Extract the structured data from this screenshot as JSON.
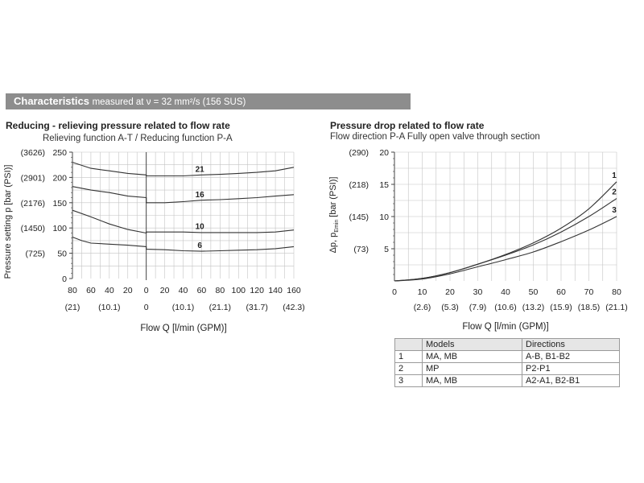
{
  "header": {
    "title": "Characteristics",
    "subtitle": "measured at ν = 32 mm²/s (156 SUS)",
    "color": "#8d8d8d"
  },
  "chart_data": [
    {
      "type": "line",
      "title": "Reducing - relieving pressure related to flow rate",
      "subtitle": "Relieving function A-T   /   Reducing function P-A",
      "xlabel": "Flow Q [l/min (GPM)]",
      "ylabel": "Pressure setting p [bar (PSI)]",
      "xlim": [
        -80,
        160
      ],
      "ylim": [
        0,
        250
      ],
      "x_ticks_left": [
        "80",
        "60",
        "40",
        "20",
        "0"
      ],
      "x_ticks_right": [
        "20",
        "40",
        "60",
        "80",
        "100",
        "120",
        "140",
        "160"
      ],
      "x_ticks_gpm": [
        "(21)",
        "(10.1)",
        "0",
        "(10.1)",
        "(21.1)",
        "(31.7)",
        "(42.3)"
      ],
      "y_ticks": [
        "0",
        "50",
        "100",
        "150",
        "200",
        "250"
      ],
      "y_ticks_psi": [
        "(725)",
        "(1450)",
        "(2176)",
        "(2901)",
        "(3626)"
      ],
      "grid": true,
      "series": [
        {
          "name": "21",
          "x": [
            -80,
            -60,
            -40,
            -20,
            0,
            0,
            20,
            40,
            60,
            80,
            100,
            120,
            140,
            160
          ],
          "y": [
            230,
            218,
            213,
            208,
            205,
            203,
            203,
            203,
            205,
            206,
            208,
            210,
            213,
            220
          ]
        },
        {
          "name": "16",
          "x": [
            -80,
            -60,
            -40,
            -20,
            0,
            0,
            20,
            40,
            60,
            80,
            100,
            120,
            140,
            160
          ],
          "y": [
            182,
            175,
            170,
            163,
            160,
            150,
            150,
            152,
            155,
            156,
            158,
            160,
            163,
            166
          ]
        },
        {
          "name": "10",
          "x": [
            -80,
            -60,
            -40,
            -20,
            0,
            0,
            20,
            40,
            60,
            80,
            100,
            120,
            140,
            160
          ],
          "y": [
            135,
            122,
            108,
            97,
            90,
            92,
            92,
            92,
            91,
            91,
            91,
            91,
            92,
            96
          ]
        },
        {
          "name": "6",
          "x": [
            -80,
            -70,
            -60,
            -40,
            -20,
            0,
            0,
            20,
            40,
            60,
            80,
            100,
            120,
            140,
            160
          ],
          "y": [
            82,
            75,
            70,
            68,
            66,
            63,
            58,
            57,
            55,
            54,
            55,
            56,
            57,
            59,
            63
          ]
        }
      ]
    },
    {
      "type": "line",
      "title": "Pressure drop related to flow rate",
      "subtitle": "Flow direction P-A    Fully open valve through section",
      "xlabel": "Flow Q [l/min (GPM)]",
      "ylabel": "Δp, p",
      "ylabel_sub": "Emin",
      "ylabel_unit": " [bar (PSI)]",
      "xlim": [
        0,
        80
      ],
      "ylim": [
        0,
        20
      ],
      "x_ticks": [
        "0",
        "10",
        "20",
        "30",
        "40",
        "50",
        "60",
        "70",
        "80"
      ],
      "x_ticks_gpm": [
        "(2.6)",
        "(5.3)",
        "(7.9)",
        "(10.6)",
        "(13.2)",
        "(15.9)",
        "(18.5)",
        "(21.1)"
      ],
      "y_ticks": [
        "5",
        "10",
        "15",
        "20"
      ],
      "y_ticks_psi": [
        "(73)",
        "(145)",
        "(218)",
        "(290)"
      ],
      "grid": true,
      "series": [
        {
          "name": "1",
          "x": [
            0,
            10,
            20,
            30,
            40,
            50,
            60,
            70,
            80
          ],
          "y": [
            0,
            0.4,
            1.3,
            2.6,
            4.1,
            5.9,
            8.2,
            11.2,
            15.4
          ]
        },
        {
          "name": "2",
          "x": [
            0,
            10,
            20,
            30,
            40,
            50,
            60,
            70,
            80
          ],
          "y": [
            0,
            0.4,
            1.3,
            2.6,
            4.0,
            5.6,
            7.6,
            10.0,
            12.8
          ]
        },
        {
          "name": "3",
          "x": [
            0,
            10,
            20,
            30,
            40,
            50,
            60,
            70,
            80
          ],
          "y": [
            0,
            0.3,
            1.1,
            2.2,
            3.3,
            4.5,
            6.1,
            7.9,
            10.0
          ]
        }
      ]
    }
  ],
  "table": {
    "headers": [
      "",
      "Models",
      "Directions"
    ],
    "rows": [
      [
        "1",
        "MA, MB",
        "A-B, B1-B2"
      ],
      [
        "2",
        "MP",
        "P2-P1"
      ],
      [
        "3",
        "MA, MB",
        "A2-A1, B2-B1"
      ]
    ]
  }
}
